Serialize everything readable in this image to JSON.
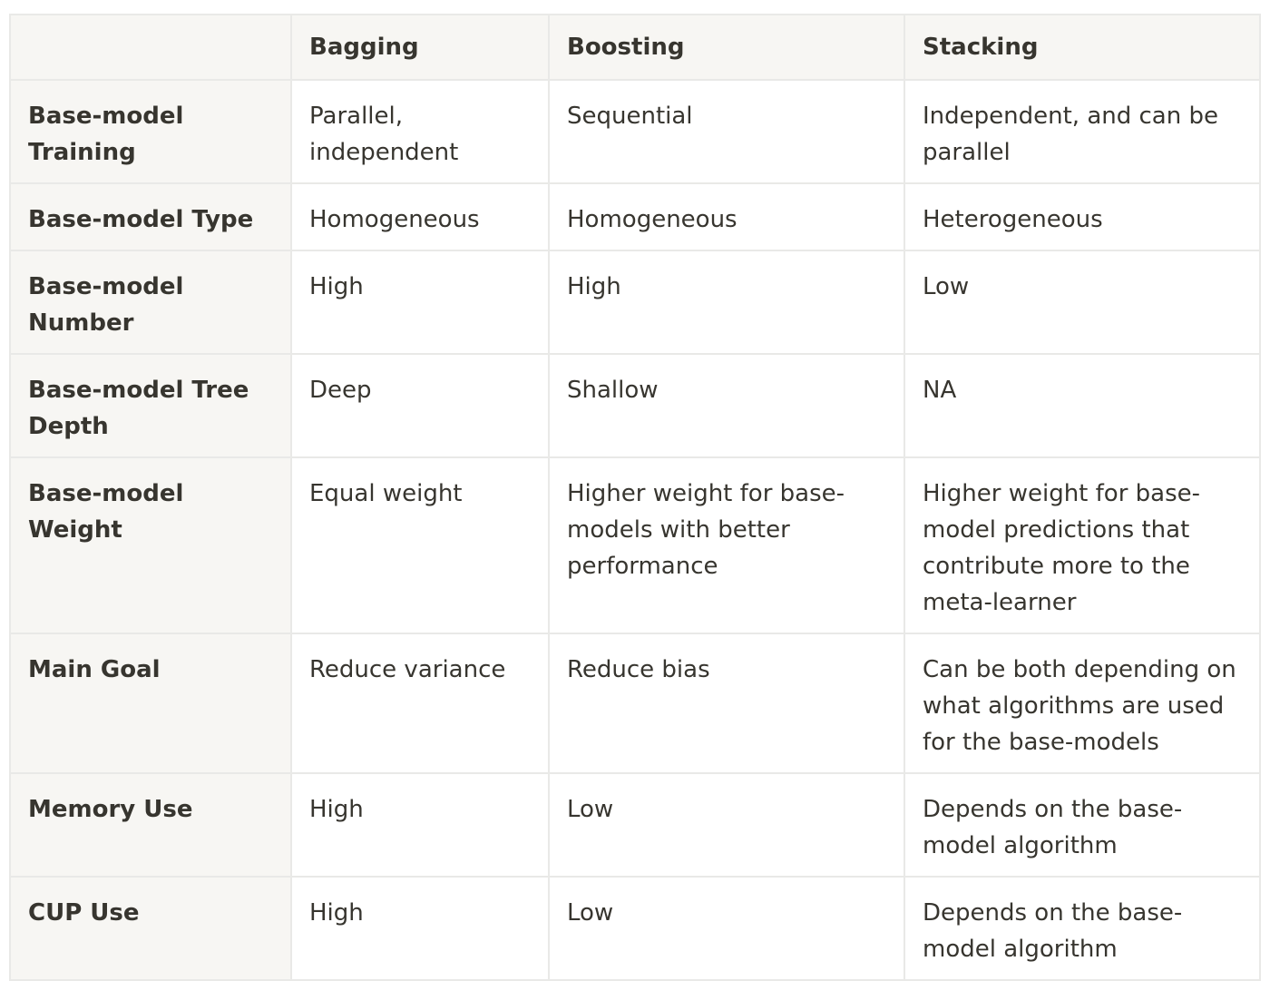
{
  "table": {
    "headers": [
      "",
      "Bagging",
      "Boosting",
      "Stacking"
    ],
    "rows": [
      {
        "label": "Base-model Training",
        "cells": [
          "Parallel, independent",
          "Sequential",
          "Independent, and can be parallel"
        ]
      },
      {
        "label": "Base-model Type",
        "cells": [
          "Homogeneous",
          "Homogeneous",
          "Heterogeneous"
        ]
      },
      {
        "label": "Base-model Number",
        "cells": [
          "High",
          "High",
          "Low"
        ]
      },
      {
        "label": "Base-model Tree Depth",
        "cells": [
          "Deep",
          "Shallow",
          "NA"
        ]
      },
      {
        "label": "Base-model Weight",
        "cells": [
          "Equal weight",
          "Higher weight for base-models with better performance",
          "Higher weight for base-model predictions that contribute more to the meta-learner"
        ]
      },
      {
        "label": "Main Goal",
        "cells": [
          "Reduce variance",
          "Reduce bias",
          "Can be both depending on what algorithms are used for the base-models"
        ]
      },
      {
        "label": "Memory Use",
        "cells": [
          "High",
          "Low",
          "Depends on the base-model algorithm"
        ]
      },
      {
        "label": "CUP Use",
        "cells": [
          "High",
          "Low",
          "Depends on the base-model algorithm"
        ]
      }
    ]
  }
}
